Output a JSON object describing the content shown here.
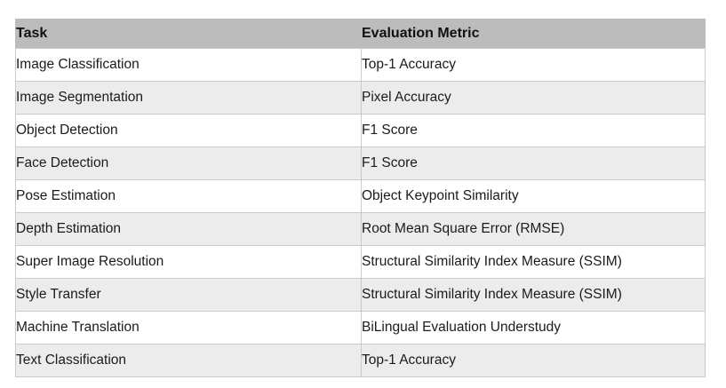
{
  "colors": {
    "header_bg": "#bcbcbc",
    "row_bg": "#ffffff",
    "row_alt_bg": "#ececec",
    "border": "#c9c9c9",
    "text": "#1b1b1b"
  },
  "table": {
    "columns": [
      {
        "label": "Task"
      },
      {
        "label": "Evaluation Metric"
      }
    ],
    "rows": [
      {
        "task": "Image Classification",
        "metric": "Top-1 Accuracy"
      },
      {
        "task": "Image Segmentation",
        "metric": "Pixel Accuracy"
      },
      {
        "task": "Object Detection",
        "metric": "F1 Score"
      },
      {
        "task": "Face Detection",
        "metric": "F1 Score"
      },
      {
        "task": "Pose Estimation",
        "metric": "Object Keypoint Similarity"
      },
      {
        "task": "Depth Estimation",
        "metric": "Root Mean Square Error (RMSE)"
      },
      {
        "task": "Super Image Resolution",
        "metric": "Structural Similarity Index Measure (SSIM)"
      },
      {
        "task": "Style Transfer",
        "metric": "Structural Similarity Index Measure (SSIM)"
      },
      {
        "task": "Machine Translation",
        "metric": "BiLingual Evaluation Understudy"
      },
      {
        "task": "Text Classification",
        "metric": "Top-1 Accuracy"
      }
    ]
  },
  "chart_data": {
    "type": "table",
    "title": "",
    "columns": [
      "Task",
      "Evaluation Metric"
    ],
    "rows": [
      [
        "Image Classification",
        "Top-1 Accuracy"
      ],
      [
        "Image Segmentation",
        "Pixel Accuracy"
      ],
      [
        "Object Detection",
        "F1 Score"
      ],
      [
        "Face Detection",
        "F1 Score"
      ],
      [
        "Pose Estimation",
        "Object Keypoint Similarity"
      ],
      [
        "Depth Estimation",
        "Root Mean Square Error (RMSE)"
      ],
      [
        "Super Image Resolution",
        "Structural Similarity Index Measure (SSIM)"
      ],
      [
        "Style Transfer",
        "Structural Similarity Index Measure (SSIM)"
      ],
      [
        "Machine Translation",
        "BiLingual Evaluation Understudy"
      ],
      [
        "Text Classification",
        "Top-1 Accuracy"
      ]
    ]
  }
}
